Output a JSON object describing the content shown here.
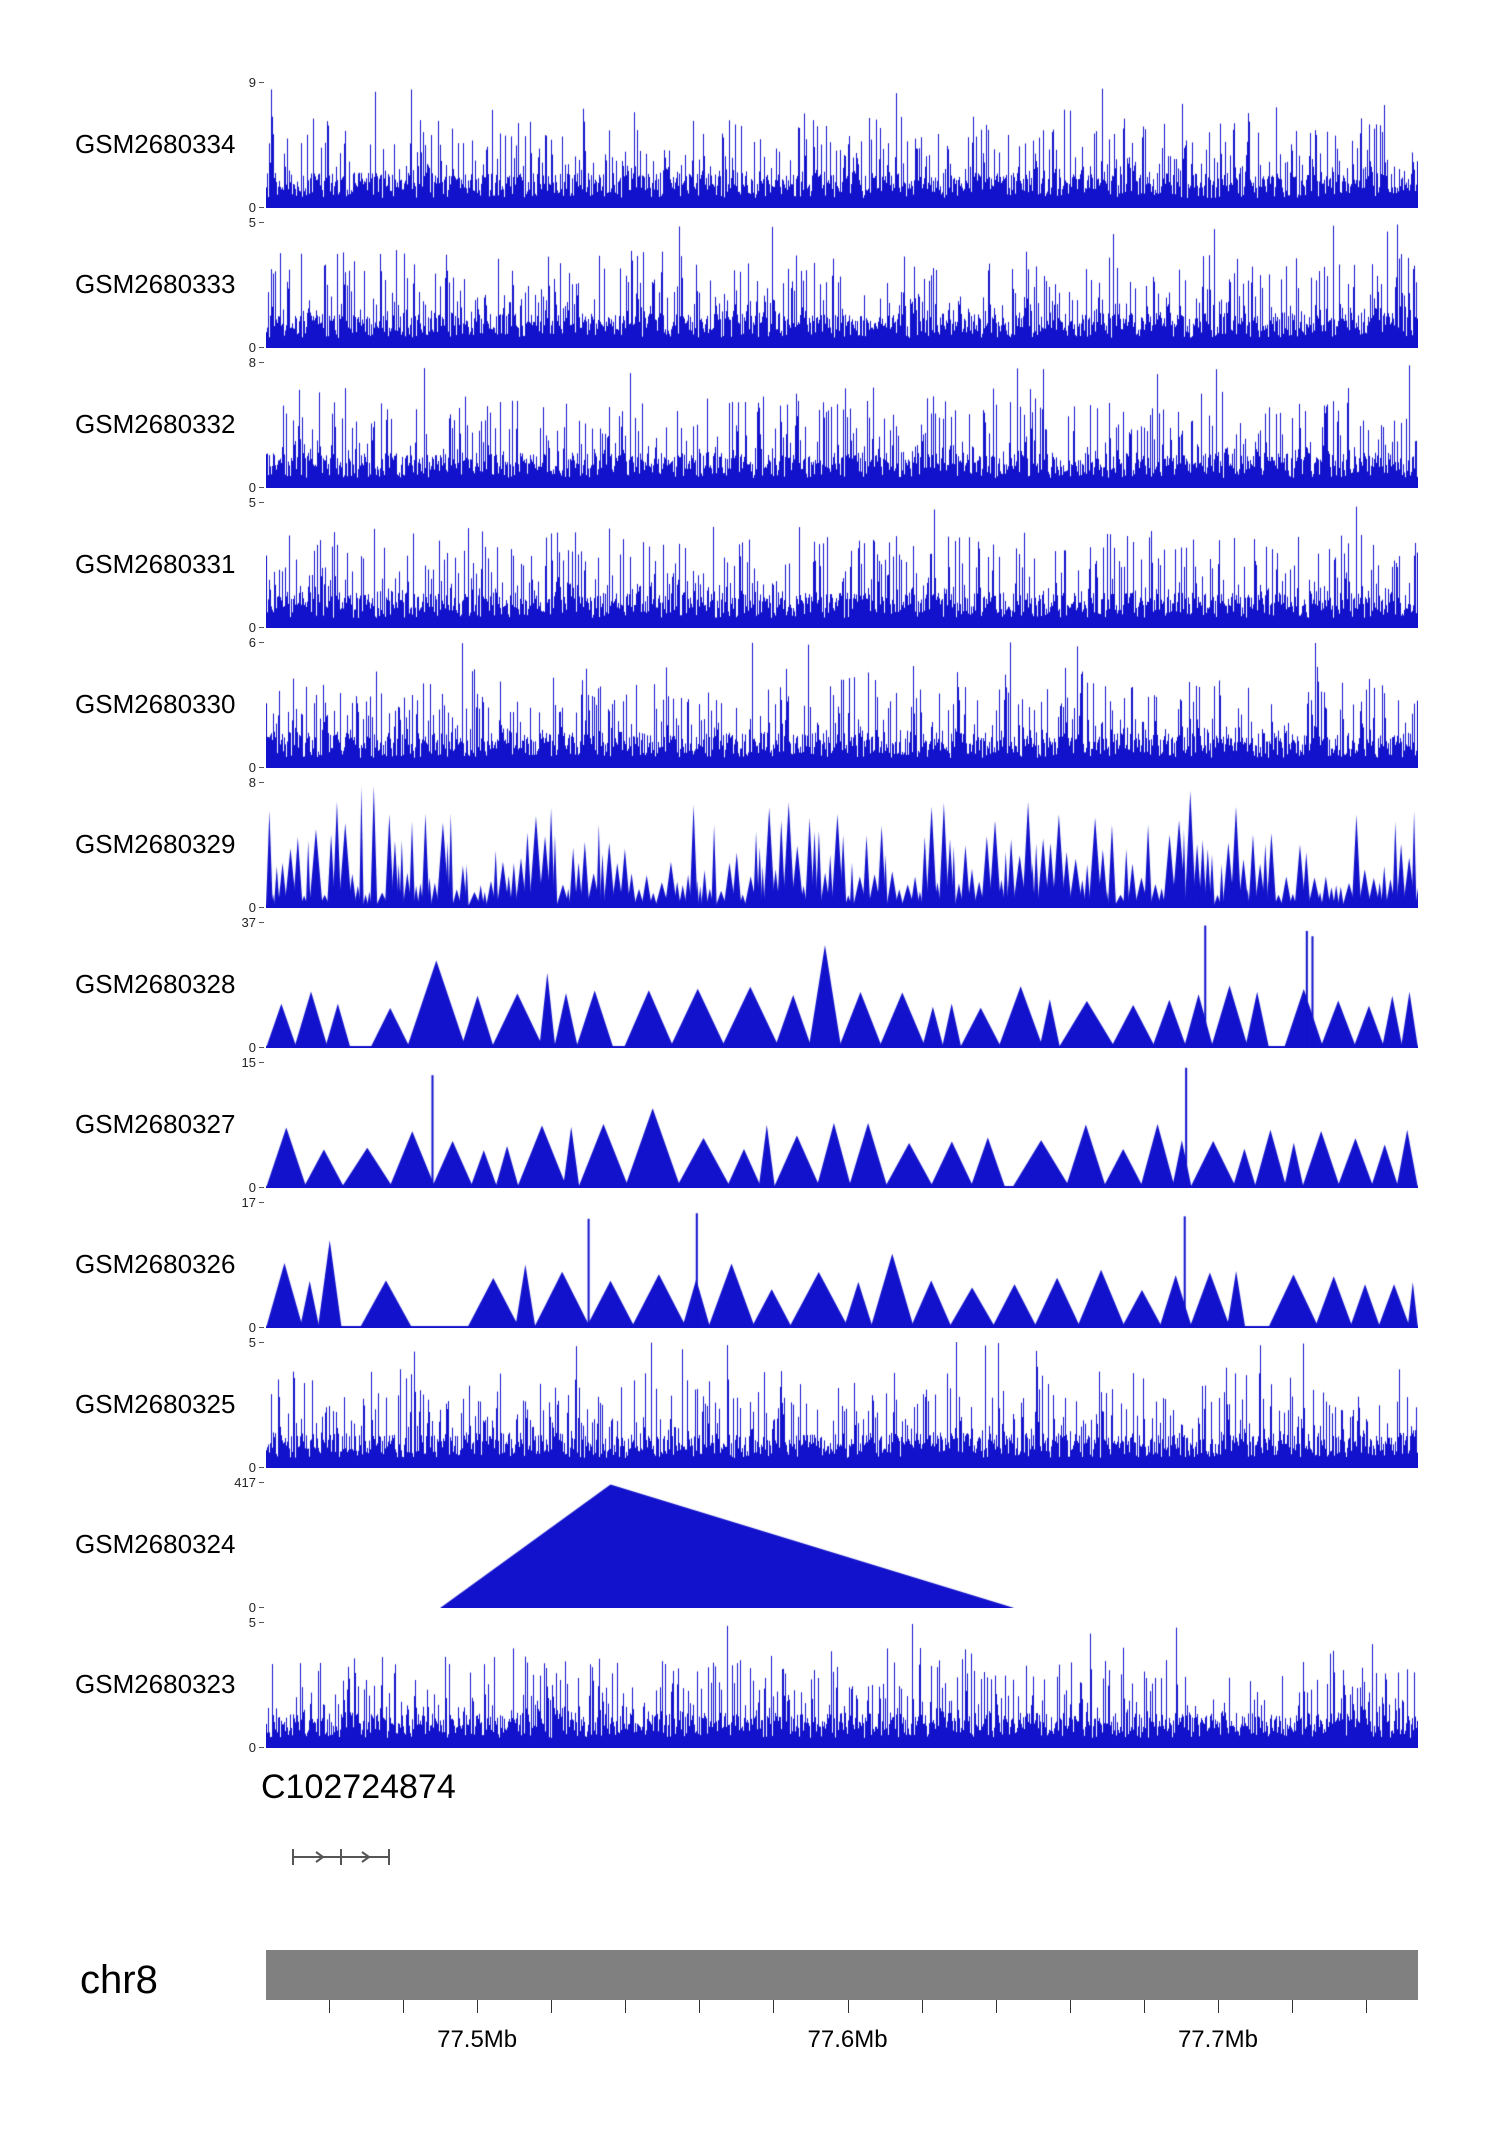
{
  "gene": {
    "label": "C102724874"
  },
  "chromosome": {
    "label": "chr8",
    "ideogram_color": "#808080"
  },
  "chart_data": {
    "type": "area",
    "title": "",
    "description": "Genome browser coverage tracks on chr8, one blue signal track per GSM sample",
    "grid": false,
    "legend": false,
    "signal_color": "#1212cc",
    "x_axis": {
      "chromosome": "chr8",
      "start_mb": 77.443,
      "end_mb": 77.754,
      "tick_step_mb": 0.02,
      "major_ticks_mb": [
        77.5,
        77.6,
        77.7
      ],
      "major_tick_labels": [
        "77.5Mb",
        "77.6Mb",
        "77.7Mb"
      ]
    },
    "tracks": [
      {
        "label": "GSM2680334",
        "ymin": 0,
        "ymax": 9,
        "style": "bars",
        "seed": 34
      },
      {
        "label": "GSM2680333",
        "ymin": 0,
        "ymax": 5,
        "style": "bars",
        "seed": 33
      },
      {
        "label": "GSM2680332",
        "ymin": 0,
        "ymax": 8,
        "style": "bars",
        "seed": 32
      },
      {
        "label": "GSM2680331",
        "ymin": 0,
        "ymax": 5,
        "style": "bars",
        "seed": 31
      },
      {
        "label": "GSM2680330",
        "ymin": 0,
        "ymax": 6,
        "style": "bars",
        "seed": 30
      },
      {
        "label": "GSM2680329",
        "ymin": 0,
        "ymax": 8,
        "style": "spikes",
        "seed": 29
      },
      {
        "label": "GSM2680328",
        "ymin": 0,
        "ymax": 37,
        "style": "peaks",
        "seed": 28
      },
      {
        "label": "GSM2680327",
        "ymin": 0,
        "ymax": 15,
        "style": "peaks",
        "seed": 27
      },
      {
        "label": "GSM2680326",
        "ymin": 0,
        "ymax": 17,
        "style": "peaks",
        "seed": 26
      },
      {
        "label": "GSM2680325",
        "ymin": 0,
        "ymax": 5,
        "style": "bars",
        "seed": 25
      },
      {
        "label": "GSM2680324",
        "ymin": 0,
        "ymax": 417,
        "style": "triangle",
        "triangle": {
          "start_mb": 77.49,
          "apex_mb": 77.536,
          "end_mb": 77.645,
          "apex_value": 417
        }
      },
      {
        "label": "GSM2680323",
        "ymin": 0,
        "ymax": 5,
        "style": "bars",
        "seed": 23
      }
    ]
  }
}
